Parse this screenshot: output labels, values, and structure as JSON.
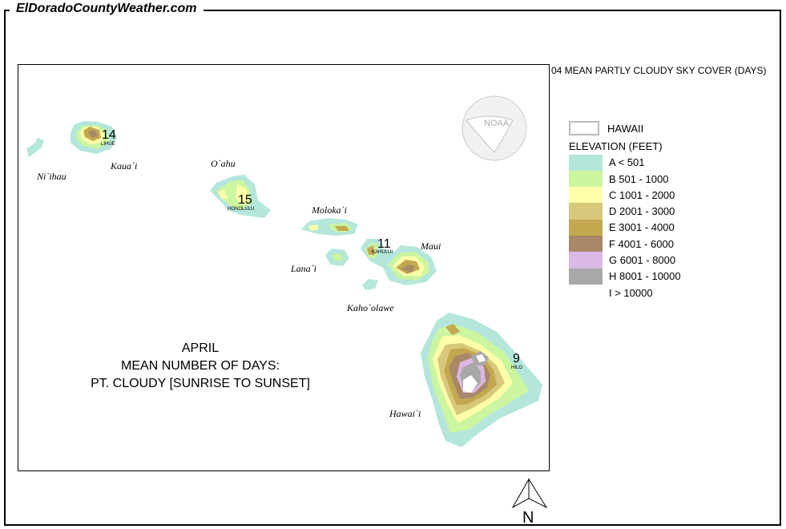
{
  "site_title": "ElDoradoCountyWeather.com",
  "map_title": "04 MEAN PARTLY CLOUDY SKY COVER (DAYS)",
  "caption": {
    "line1": "APRIL",
    "line2": "MEAN NUMBER OF DAYS:",
    "line3": "PT. CLOUDY [SUNRISE TO SUNSET]"
  },
  "logo": "NOAA",
  "legend": {
    "state_label": "HAWAII",
    "elevation_title": "ELEVATION (FEET)",
    "classes": [
      {
        "label": "A < 501",
        "color": "#b4e6dc"
      },
      {
        "label": "B 501 - 1000",
        "color": "#ccf5a0"
      },
      {
        "label": "C 1001 - 2000",
        "color": "#ffffaa"
      },
      {
        "label": "D 2001 - 3000",
        "color": "#d8c87c"
      },
      {
        "label": "E 3001 - 4000",
        "color": "#c4a850"
      },
      {
        "label": "F 4001 - 6000",
        "color": "#a88868"
      },
      {
        "label": "G 6001 - 8000",
        "color": "#dcb8e6"
      },
      {
        "label": "H 8001 - 10000",
        "color": "#a8a8a8"
      },
      {
        "label": "I > 10000",
        "color": "#ffffff"
      }
    ]
  },
  "islands": {
    "niihau": "Ni`ihau",
    "kauai": "Kaua`i",
    "oahu": "O`ahu",
    "molokai": "Moloka`i",
    "lanai": "Lana`i",
    "maui": "Maui",
    "kahoolawe": "Kaho`olawe",
    "hawaii": "Hawai`i"
  },
  "stations": [
    {
      "city": "LIHUE",
      "value": "14"
    },
    {
      "city": "HONOLULU",
      "value": "15"
    },
    {
      "city": "KAHULUI",
      "value": "11"
    },
    {
      "city": "HILO",
      "value": "9"
    }
  ],
  "north_label": "N"
}
